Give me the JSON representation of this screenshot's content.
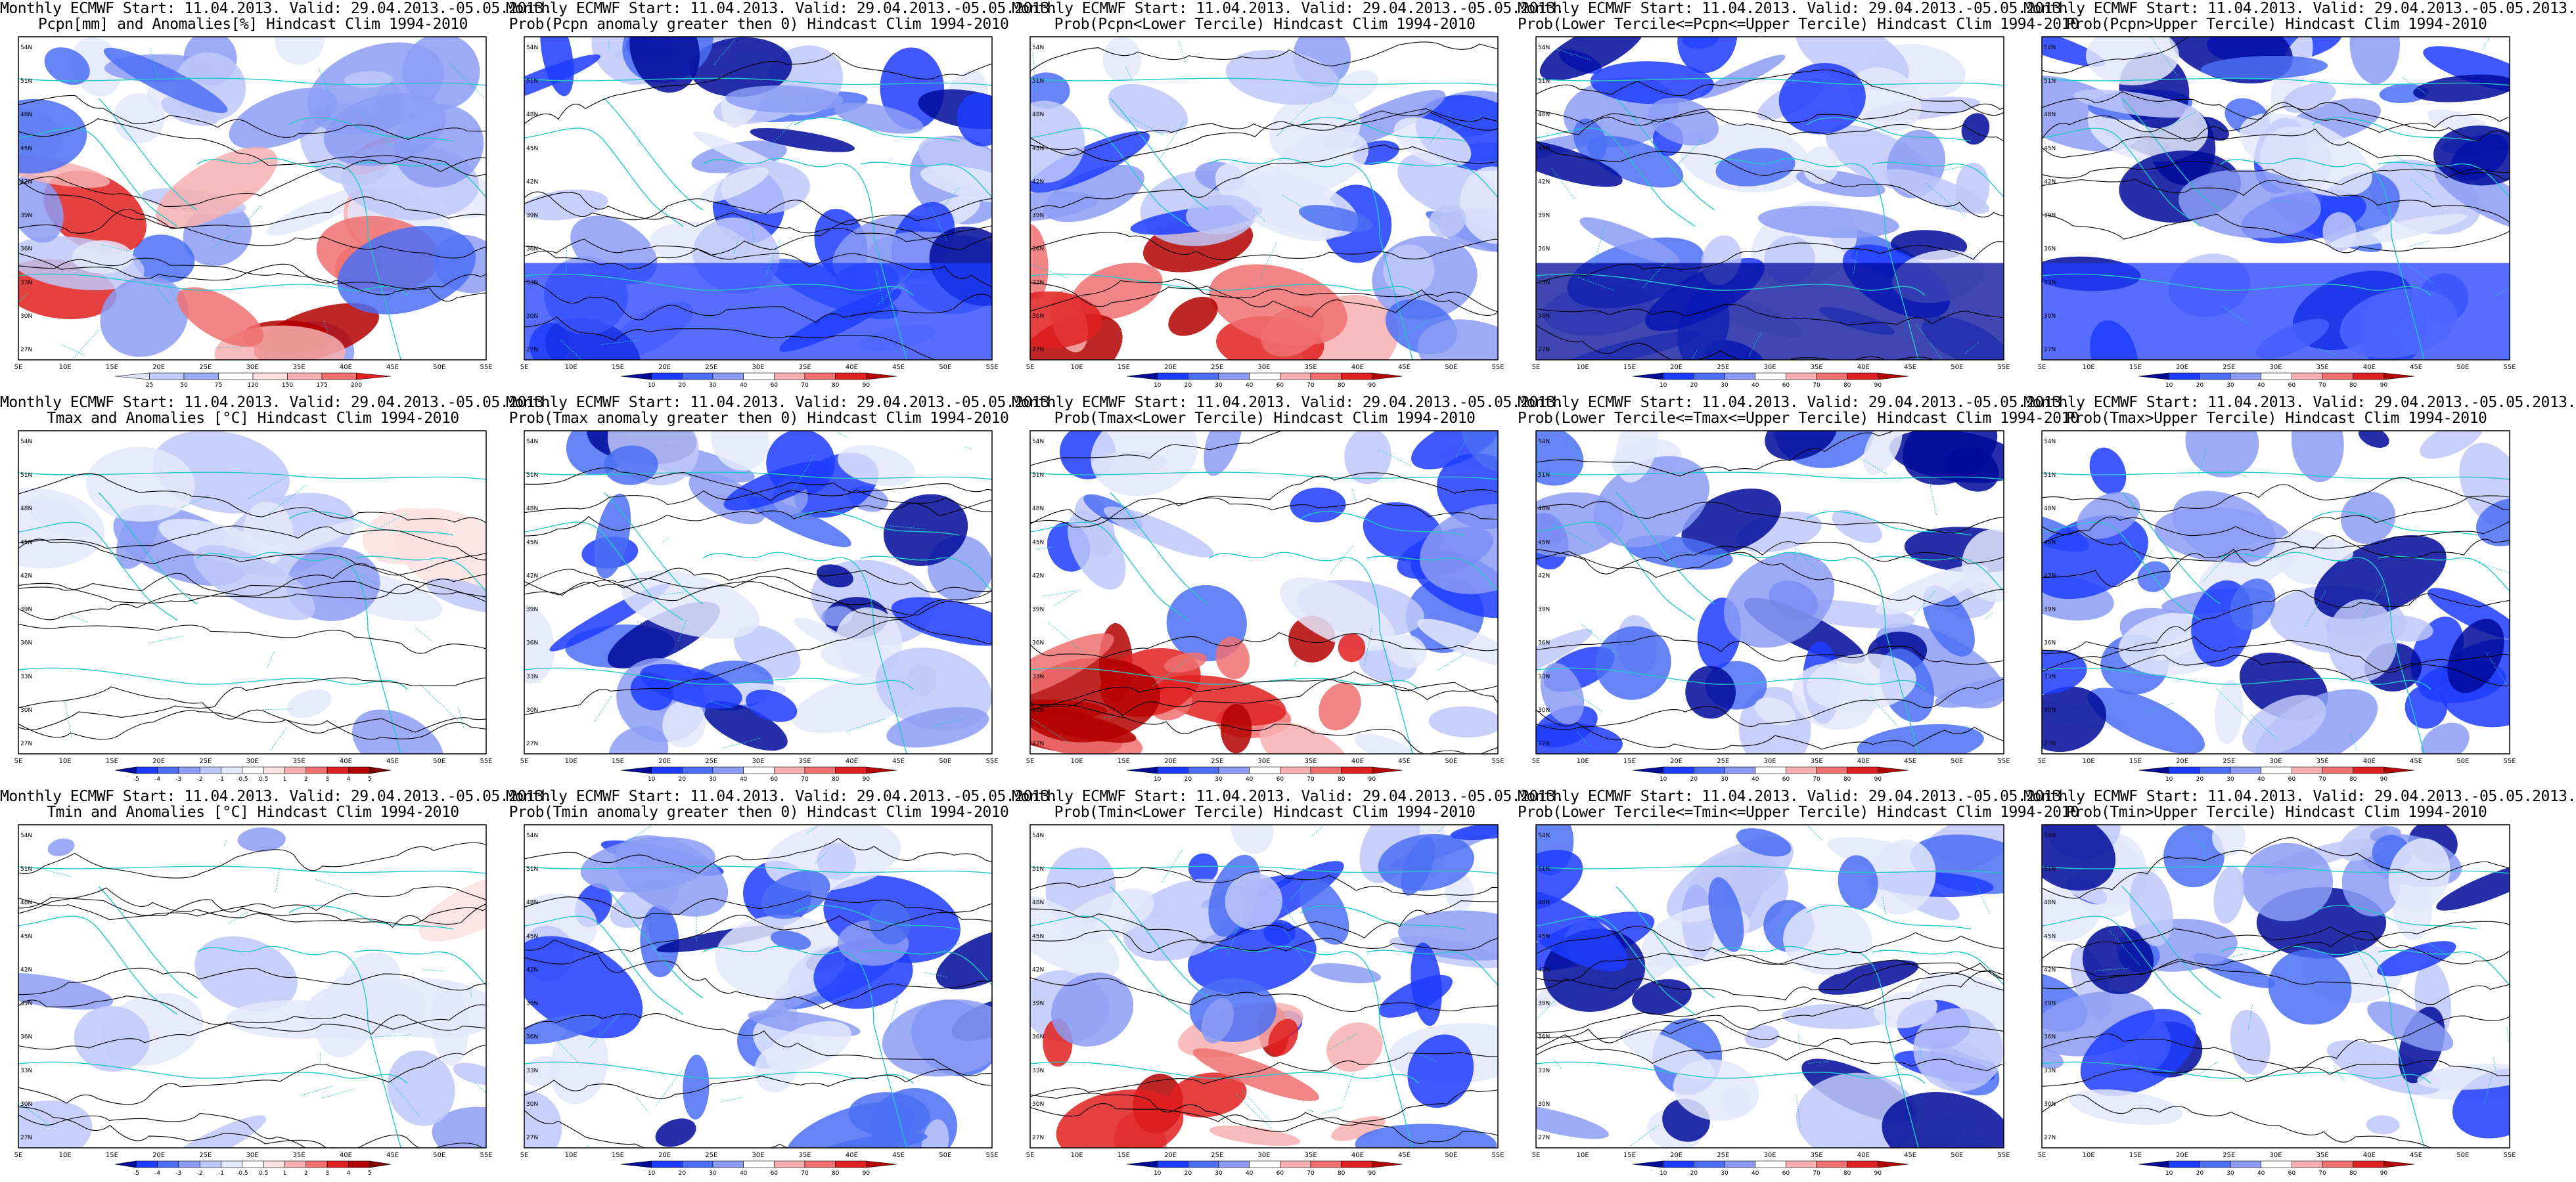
{
  "lat_labels": [
    "54N",
    "51N",
    "48N",
    "45N",
    "42N",
    "39N",
    "36N",
    "33N",
    "30N",
    "27N"
  ],
  "lon_labels": [
    "5E",
    "10E",
    "15E",
    "20E",
    "25E",
    "30E",
    "35E",
    "40E",
    "45E",
    "50E",
    "55E"
  ],
  "colors": {
    "coast": "#22c8c8",
    "contour": "#000000",
    "blue_scale": [
      "#000a9a",
      "#1e3cff",
      "#4b6ef5",
      "#8c9cf4",
      "#bec8f8",
      "#e3e8fb",
      "#ffffff"
    ],
    "red_scale": [
      "#ffffff",
      "#fde0e0",
      "#f7b0b0",
      "#f07070",
      "#e02020",
      "#b40000"
    ]
  },
  "panels": [
    {
      "title1": "Monthly ECMWF Start: 11.04.2013. Valid: 29.04.2013.-05.05.2013.",
      "title2": "Pcpn[mm] and Anomalies[%] Hindcast Clim 1994-2010",
      "colorbar": [
        "25",
        "50",
        "75",
        "120",
        "150",
        "175",
        "200"
      ]
    },
    {
      "title1": "Monthly ECMWF Start: 11.04.2013. Valid: 29.04.2013.-05.05.2013.",
      "title2": "Prob(Pcpn anomaly greater then 0) Hindcast Clim 1994-2010",
      "colorbar": [
        "10",
        "20",
        "30",
        "40",
        "60",
        "70",
        "80",
        "90"
      ]
    },
    {
      "title1": "Monthly ECMWF Start: 11.04.2013. Valid: 29.04.2013.-05.05.2013.",
      "title2": "Prob(Pcpn<Lower Tercile) Hindcast Clim 1994-2010",
      "colorbar": [
        "10",
        "20",
        "30",
        "40",
        "60",
        "70",
        "80",
        "90"
      ]
    },
    {
      "title1": "Monthly ECMWF Start: 11.04.2013. Valid: 29.04.2013.-05.05.2013.",
      "title2": "Prob(Lower Tercile<=Pcpn<=Upper Tercile) Hindcast Clim 1994-2010",
      "colorbar": [
        "10",
        "20",
        "30",
        "40",
        "60",
        "70",
        "80",
        "90"
      ]
    },
    {
      "title1": "Monthly ECMWF Start: 11.04.2013. Valid: 29.04.2013.-05.05.2013.",
      "title2": "Prob(Pcpn>Upper Tercile) Hindcast Clim 1994-2010",
      "colorbar": [
        "10",
        "20",
        "30",
        "40",
        "60",
        "70",
        "80",
        "90"
      ]
    },
    {
      "title1": "Monthly ECMWF Start: 11.04.2013. Valid: 29.04.2013.-05.05.2013.",
      "title2": "Tmax and Anomalies [°C] Hindcast Clim 1994-2010",
      "colorbar": [
        "-5",
        "-4",
        "-3",
        "-2",
        "-1",
        "-0.5",
        "0.5",
        "1",
        "2",
        "3",
        "4",
        "5"
      ]
    },
    {
      "title1": "Monthly ECMWF Start: 11.04.2013. Valid: 29.04.2013.-05.05.2013.",
      "title2": "Prob(Tmax anomaly greater then 0) Hindcast Clim 1994-2010",
      "colorbar": [
        "10",
        "20",
        "30",
        "40",
        "60",
        "70",
        "80",
        "90"
      ]
    },
    {
      "title1": "Monthly ECMWF Start: 11.04.2013. Valid: 29.04.2013.-05.05.2013.",
      "title2": "Prob(Tmax<Lower Tercile) Hindcast Clim 1994-2010",
      "colorbar": [
        "10",
        "20",
        "30",
        "40",
        "60",
        "70",
        "80",
        "90"
      ]
    },
    {
      "title1": "Monthly ECMWF Start: 11.04.2013. Valid: 29.04.2013.-05.05.2013.",
      "title2": "Prob(Lower Tercile<=Tmax<=Upper Tercile) Hindcast Clim 1994-2010",
      "colorbar": [
        "10",
        "20",
        "30",
        "40",
        "60",
        "70",
        "80",
        "90"
      ]
    },
    {
      "title1": "Monthly ECMWF Start: 11.04.2013. Valid: 29.04.2013.-05.05.2013.",
      "title2": "Prob(Tmax>Upper Tercile) Hindcast Clim 1994-2010",
      "colorbar": [
        "10",
        "20",
        "30",
        "40",
        "60",
        "70",
        "80",
        "90"
      ]
    },
    {
      "title1": "Monthly ECMWF Start: 11.04.2013. Valid: 29.04.2013.-05.05.2013.",
      "title2": "Tmin and Anomalies [°C] Hindcast Clim 1994-2010",
      "colorbar": [
        "-5",
        "-4",
        "-3",
        "-2",
        "-1",
        "-0.5",
        "0.5",
        "1",
        "2",
        "3",
        "4",
        "5"
      ]
    },
    {
      "title1": "Monthly ECMWF Start: 11.04.2013. Valid: 29.04.2013.-05.05.2013.",
      "title2": "Prob(Tmin anomaly greater then 0) Hindcast Clim 1994-2010",
      "colorbar": [
        "10",
        "20",
        "30",
        "40",
        "60",
        "70",
        "80",
        "90"
      ]
    },
    {
      "title1": "Monthly ECMWF Start: 11.04.2013. Valid: 29.04.2013.-05.05.2013.",
      "title2": "Prob(Tmin<Lower Tercile) Hindcast Clim 1994-2010",
      "colorbar": [
        "10",
        "20",
        "30",
        "40",
        "60",
        "70",
        "80",
        "90"
      ]
    },
    {
      "title1": "Monthly ECMWF Start: 11.04.2013. Valid: 29.04.2013.-05.05.2013.",
      "title2": "Prob(Lower Tercile<=Tmin<=Upper Tercile) Hindcast Clim 1994-2010",
      "colorbar": [
        "10",
        "20",
        "30",
        "40",
        "60",
        "70",
        "80",
        "90"
      ]
    },
    {
      "title1": "Monthly ECMWF Start: 11.04.2013. Valid: 29.04.2013.-05.05.2013.",
      "title2": "Prob(Tmin>Upper Tercile) Hindcast Clim 1994-2010",
      "colorbar": [
        "10",
        "20",
        "30",
        "40",
        "60",
        "70",
        "80",
        "90"
      ]
    }
  ]
}
